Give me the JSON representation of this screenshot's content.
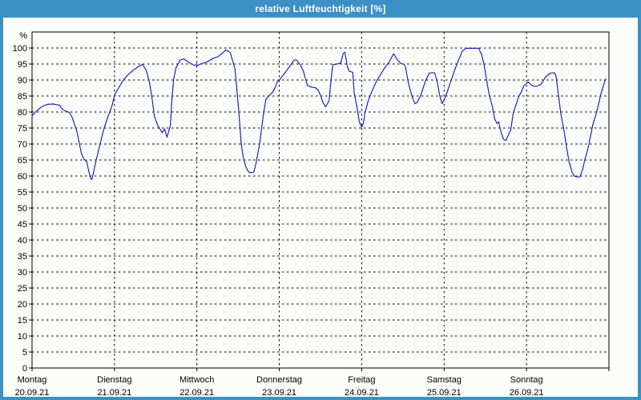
{
  "window": {
    "title": "relative Luftfeuchtigkeit [%]"
  },
  "colors": {
    "titlebar_bg": "#3b90c6",
    "title_text": "#ffffff",
    "plot_bg": "#fbfdfa",
    "grid": "#000000",
    "axis": "#000000",
    "text": "#000000",
    "line": "#2222c0"
  },
  "y_axis": {
    "unit_label": "%",
    "min": 0,
    "max": 100,
    "step": 5,
    "tick_labels": [
      "0",
      "5",
      "10",
      "15",
      "20",
      "25",
      "30",
      "35",
      "40",
      "45",
      "50",
      "55",
      "60",
      "65",
      "70",
      "75",
      "80",
      "85",
      "90",
      "95",
      "100"
    ]
  },
  "x_axis": {
    "days": [
      {
        "name": "Montag",
        "date": "20.09.21"
      },
      {
        "name": "Dienstag",
        "date": "21.09.21"
      },
      {
        "name": "Mittwoch",
        "date": "22.09.21"
      },
      {
        "name": "Donnerstag",
        "date": "23.09.21"
      },
      {
        "name": "Freitag",
        "date": "24.09.21"
      },
      {
        "name": "Samstag",
        "date": "25.09.21"
      },
      {
        "name": "Sonntag",
        "date": "26.09.21"
      }
    ]
  },
  "chart_data": {
    "type": "line",
    "title": "relative Luftfeuchtigkeit [%]",
    "xlabel": "",
    "ylabel": "%",
    "ylim": [
      0,
      100
    ],
    "ytick_step": 5,
    "x_unit": "hours since Monday 00:00",
    "xlim_hours": [
      0,
      168
    ],
    "grid": "dashed, horizontal every 5%, vertical every day",
    "legend": "none",
    "series": [
      {
        "name": "relative Luftfeuchtigkeit",
        "points": [
          [
            0,
            78.8
          ],
          [
            1.4,
            80.4
          ],
          [
            2.9,
            81.7
          ],
          [
            4.5,
            82.4
          ],
          [
            6.2,
            82.5
          ],
          [
            8.0,
            82.1
          ],
          [
            8.7,
            81.0
          ],
          [
            9.6,
            80.4
          ],
          [
            10.8,
            79.9
          ],
          [
            11.5,
            78.8
          ],
          [
            12.2,
            76.7
          ],
          [
            13.1,
            73.8
          ],
          [
            13.8,
            70.0
          ],
          [
            14.4,
            67.0
          ],
          [
            15.1,
            65.2
          ],
          [
            15.9,
            64.6
          ],
          [
            16.3,
            62.5
          ],
          [
            17.0,
            59.3
          ],
          [
            17.4,
            58.9
          ],
          [
            18.0,
            61.5
          ],
          [
            18.7,
            65.0
          ],
          [
            19.8,
            70.0
          ],
          [
            21.0,
            75.0
          ],
          [
            22.2,
            78.8
          ],
          [
            23.3,
            82.0
          ],
          [
            24.0,
            85.3
          ],
          [
            25.2,
            87.5
          ],
          [
            26.6,
            90.0
          ],
          [
            28.0,
            91.7
          ],
          [
            29.6,
            93.2
          ],
          [
            31.0,
            94.2
          ],
          [
            32.2,
            94.9
          ],
          [
            33.3,
            92.9
          ],
          [
            34.2,
            89.2
          ],
          [
            34.9,
            84.6
          ],
          [
            35.6,
            78.8
          ],
          [
            36.6,
            75.8
          ],
          [
            37.3,
            74.6
          ],
          [
            37.9,
            73.5
          ],
          [
            38.6,
            74.7
          ],
          [
            39.3,
            72.1
          ],
          [
            40.3,
            75.8
          ],
          [
            40.7,
            83.3
          ],
          [
            41.2,
            90.0
          ],
          [
            41.9,
            93.8
          ],
          [
            43.1,
            96.2
          ],
          [
            44.2,
            96.6
          ],
          [
            45.8,
            95.4
          ],
          [
            47.2,
            94.6
          ],
          [
            48.1,
            94.5
          ],
          [
            49.3,
            95.1
          ],
          [
            50.7,
            95.5
          ],
          [
            52.8,
            96.8
          ],
          [
            54.2,
            97.3
          ],
          [
            55.4,
            98.4
          ],
          [
            56.5,
            99.4
          ],
          [
            57.7,
            98.6
          ],
          [
            58.4,
            96.0
          ],
          [
            59.1,
            93.5
          ],
          [
            59.8,
            85.2
          ],
          [
            60.2,
            80.2
          ],
          [
            60.9,
            70.2
          ],
          [
            61.6,
            65.3
          ],
          [
            62.3,
            62.8
          ],
          [
            63.0,
            61.3
          ],
          [
            63.9,
            61.0
          ],
          [
            64.6,
            61.3
          ],
          [
            65.3,
            64.4
          ],
          [
            66.3,
            70.2
          ],
          [
            67.0,
            76.0
          ],
          [
            67.4,
            79.4
          ],
          [
            68.1,
            84.0
          ],
          [
            69.1,
            85.2
          ],
          [
            70.0,
            86.1
          ],
          [
            70.7,
            87.4
          ],
          [
            71.4,
            89.4
          ],
          [
            72.1,
            90.1
          ],
          [
            73.7,
            92.3
          ],
          [
            75.1,
            94.4
          ],
          [
            76.3,
            96.2
          ],
          [
            77.0,
            96.3
          ],
          [
            78.3,
            94.4
          ],
          [
            79.0,
            92.8
          ],
          [
            80.2,
            88.3
          ],
          [
            81.6,
            87.7
          ],
          [
            82.5,
            87.6
          ],
          [
            83.3,
            86.9
          ],
          [
            84.0,
            85.2
          ],
          [
            84.7,
            83.0
          ],
          [
            85.5,
            81.6
          ],
          [
            86.5,
            83.5
          ],
          [
            87.1,
            90.3
          ],
          [
            87.6,
            94.8
          ],
          [
            88.8,
            95.0
          ],
          [
            89.9,
            95.3
          ],
          [
            90.6,
            98.3
          ],
          [
            91.1,
            98.7
          ],
          [
            91.8,
            94.4
          ],
          [
            92.3,
            92.8
          ],
          [
            93.4,
            92.4
          ],
          [
            93.8,
            86.0
          ],
          [
            94.7,
            81.0
          ],
          [
            95.3,
            77.0
          ],
          [
            96.0,
            75.2
          ],
          [
            96.5,
            76.5
          ],
          [
            96.9,
            79.4
          ],
          [
            97.9,
            83.6
          ],
          [
            99.3,
            87.3
          ],
          [
            100.4,
            89.8
          ],
          [
            101.6,
            91.9
          ],
          [
            102.7,
            93.8
          ],
          [
            103.9,
            95.5
          ],
          [
            105.3,
            98.2
          ],
          [
            106.4,
            96.3
          ],
          [
            107.4,
            95.2
          ],
          [
            108.3,
            94.9
          ],
          [
            108.7,
            94.2
          ],
          [
            109.7,
            88.6
          ],
          [
            110.8,
            84.4
          ],
          [
            111.5,
            82.6
          ],
          [
            112.2,
            83.0
          ],
          [
            113.2,
            85.2
          ],
          [
            114.6,
            89.8
          ],
          [
            115.7,
            92.2
          ],
          [
            116.9,
            92.3
          ],
          [
            117.3,
            92.1
          ],
          [
            118.0,
            89.4
          ],
          [
            118.7,
            85.2
          ],
          [
            119.4,
            82.6
          ],
          [
            120.1,
            84.0
          ],
          [
            120.8,
            86.0
          ],
          [
            122.0,
            89.8
          ],
          [
            123.1,
            93.2
          ],
          [
            124.3,
            96.5
          ],
          [
            125.4,
            99.2
          ],
          [
            126.4,
            99.9
          ],
          [
            130.1,
            99.9
          ],
          [
            131.0,
            97.7
          ],
          [
            131.7,
            94.4
          ],
          [
            132.4,
            89.8
          ],
          [
            133.1,
            85.6
          ],
          [
            134.0,
            81.9
          ],
          [
            134.7,
            77.9
          ],
          [
            135.4,
            76.4
          ],
          [
            135.9,
            76.9
          ],
          [
            136.6,
            73.6
          ],
          [
            137.3,
            71.5
          ],
          [
            138.0,
            71.1
          ],
          [
            139.4,
            74.4
          ],
          [
            140.1,
            79.4
          ],
          [
            141.0,
            82.5
          ],
          [
            141.7,
            84.8
          ],
          [
            142.4,
            86.1
          ],
          [
            143.3,
            88.3
          ],
          [
            144.5,
            89.4
          ],
          [
            145.6,
            88.2
          ],
          [
            146.8,
            88.0
          ],
          [
            148.2,
            88.6
          ],
          [
            149.4,
            90.7
          ],
          [
            150.5,
            91.9
          ],
          [
            151.2,
            92.2
          ],
          [
            152.2,
            92.2
          ],
          [
            152.6,
            91.1
          ],
          [
            153.3,
            85.2
          ],
          [
            154.0,
            79.4
          ],
          [
            155.0,
            73.6
          ],
          [
            155.7,
            68.6
          ],
          [
            156.4,
            64.4
          ],
          [
            157.3,
            61.1
          ],
          [
            158.0,
            59.9
          ],
          [
            158.9,
            59.7
          ],
          [
            159.6,
            59.8
          ],
          [
            160.3,
            61.9
          ],
          [
            161.0,
            65.2
          ],
          [
            161.9,
            68.6
          ],
          [
            162.6,
            72.3
          ],
          [
            163.3,
            76.1
          ],
          [
            164.3,
            79.4
          ],
          [
            165.0,
            82.5
          ],
          [
            165.7,
            85.8
          ],
          [
            167.0,
            90.3
          ]
        ]
      }
    ]
  }
}
